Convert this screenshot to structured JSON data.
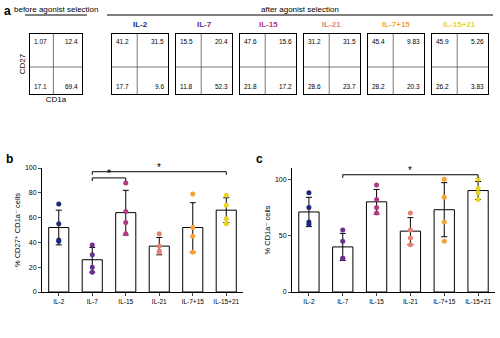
{
  "chart_data": [
    {
      "type": "quadrant",
      "panel": "a",
      "group": "before agonist selection",
      "x_label": "CD1a",
      "y_label": "CD27",
      "xlim": [
        0,
        1
      ],
      "ylim": [
        0,
        1
      ],
      "tick_labels": false,
      "quadrants": {
        "upper_left": 1.07,
        "upper_right": 12.4,
        "lower_left": 17.1,
        "lower_right": 69.4
      }
    },
    {
      "type": "quadrant",
      "group": "after agonist selection",
      "title": "IL-2",
      "color": "#1c2a78",
      "xlim": [
        0,
        1
      ],
      "ylim": [
        0,
        1
      ],
      "tick_labels": false,
      "quadrants": {
        "upper_left": 41.2,
        "upper_right": 31.5,
        "lower_left": 17.7,
        "lower_right": 9.6
      }
    },
    {
      "type": "quadrant",
      "group": "after agonist selection",
      "title": "IL-7",
      "color": "#6b2d8f",
      "xlim": [
        0,
        1
      ],
      "ylim": [
        0,
        1
      ],
      "tick_labels": false,
      "quadrants": {
        "upper_left": 15.5,
        "upper_right": 20.4,
        "lower_left": 11.8,
        "lower_right": 52.3
      }
    },
    {
      "type": "quadrant",
      "group": "after agonist selection",
      "title": "IL-15",
      "color": "#b03a80",
      "xlim": [
        0,
        1
      ],
      "ylim": [
        0,
        1
      ],
      "tick_labels": false,
      "quadrants": {
        "upper_left": 47.6,
        "upper_right": 15.6,
        "lower_left": 21.8,
        "lower_right": 17.2
      }
    },
    {
      "type": "quadrant",
      "group": "after agonist selection",
      "title": "IL-21",
      "color": "#e8807a",
      "xlim": [
        0,
        1
      ],
      "ylim": [
        0,
        1
      ],
      "tick_labels": false,
      "quadrants": {
        "upper_left": 31.2,
        "upper_right": 31.5,
        "lower_left": 28.6,
        "lower_right": 23.7
      }
    },
    {
      "type": "quadrant",
      "group": "after agonist selection",
      "title": "IL-7+15",
      "color": "#f4a33a",
      "xlim": [
        0,
        1
      ],
      "ylim": [
        0,
        1
      ],
      "tick_labels": false,
      "quadrants": {
        "upper_left": 45.4,
        "upper_right": 9.83,
        "lower_left": 28.2,
        "lower_right": 20.3
      }
    },
    {
      "type": "quadrant",
      "group": "after agonist selection",
      "title": "IL-15+21",
      "color": "#e6d629",
      "xlim": [
        0,
        1
      ],
      "ylim": [
        0,
        1
      ],
      "tick_labels": false,
      "quadrants": {
        "upper_left": 45.9,
        "upper_right": 5.26,
        "lower_left": 26.2,
        "lower_right": 3.83
      }
    },
    {
      "type": "bar",
      "panel": "b",
      "y_label": "% CD27⁺ CD1a⁻ cells",
      "categories": [
        "IL-2",
        "IL-7",
        "IL-15",
        "IL-21",
        "IL-7+15",
        "IL-15+21"
      ],
      "values": [
        52,
        26,
        64,
        37,
        52,
        66
      ],
      "error": [
        14,
        10,
        18,
        7,
        20,
        10
      ],
      "points": [
        [
          71,
          55,
          42,
          41
        ],
        [
          38,
          30,
          20,
          16
        ],
        [
          88,
          65,
          56,
          47
        ],
        [
          47,
          37,
          33,
          32
        ],
        [
          79,
          52,
          45,
          32
        ],
        [
          78,
          70,
          59,
          55
        ]
      ],
      "colors": [
        "#1c2a78",
        "#6b2d8f",
        "#b03a80",
        "#e8807a",
        "#f4a33a",
        "#e6d629"
      ],
      "ylim": [
        0,
        100
      ],
      "yticks": [
        0,
        20,
        40,
        60,
        80,
        100
      ],
      "grid": false,
      "significance": [
        {
          "from": "IL-7",
          "to": "IL-15",
          "y": 92,
          "label": "*"
        },
        {
          "from": "IL-7",
          "to": "IL-15+21",
          "y": 97,
          "label": "*"
        }
      ]
    },
    {
      "type": "bar",
      "panel": "c",
      "y_label": "% CD1a⁻ cells",
      "categories": [
        "IL-2",
        "IL-7",
        "IL-15",
        "IL-21",
        "IL-7+15",
        "IL-15+21"
      ],
      "values": [
        71,
        40,
        80,
        54,
        73,
        90
      ],
      "error": [
        13,
        12,
        11,
        12,
        24,
        8
      ],
      "points": [
        [
          88,
          75,
          62,
          60
        ],
        [
          55,
          45,
          30,
          30
        ],
        [
          95,
          82,
          75,
          70
        ],
        [
          70,
          55,
          48,
          42
        ],
        [
          100,
          84,
          62,
          45
        ],
        [
          100,
          92,
          88,
          82
        ]
      ],
      "colors": [
        "#1c2a78",
        "#6b2d8f",
        "#b03a80",
        "#e8807a",
        "#f4a33a",
        "#e6d629"
      ],
      "ylim": [
        0,
        110
      ],
      "yticks": [
        0,
        50,
        100
      ],
      "grid": false,
      "significance": [
        {
          "from": "IL-7",
          "to": "IL-15+21",
          "y": 104,
          "label": "*"
        }
      ]
    }
  ]
}
